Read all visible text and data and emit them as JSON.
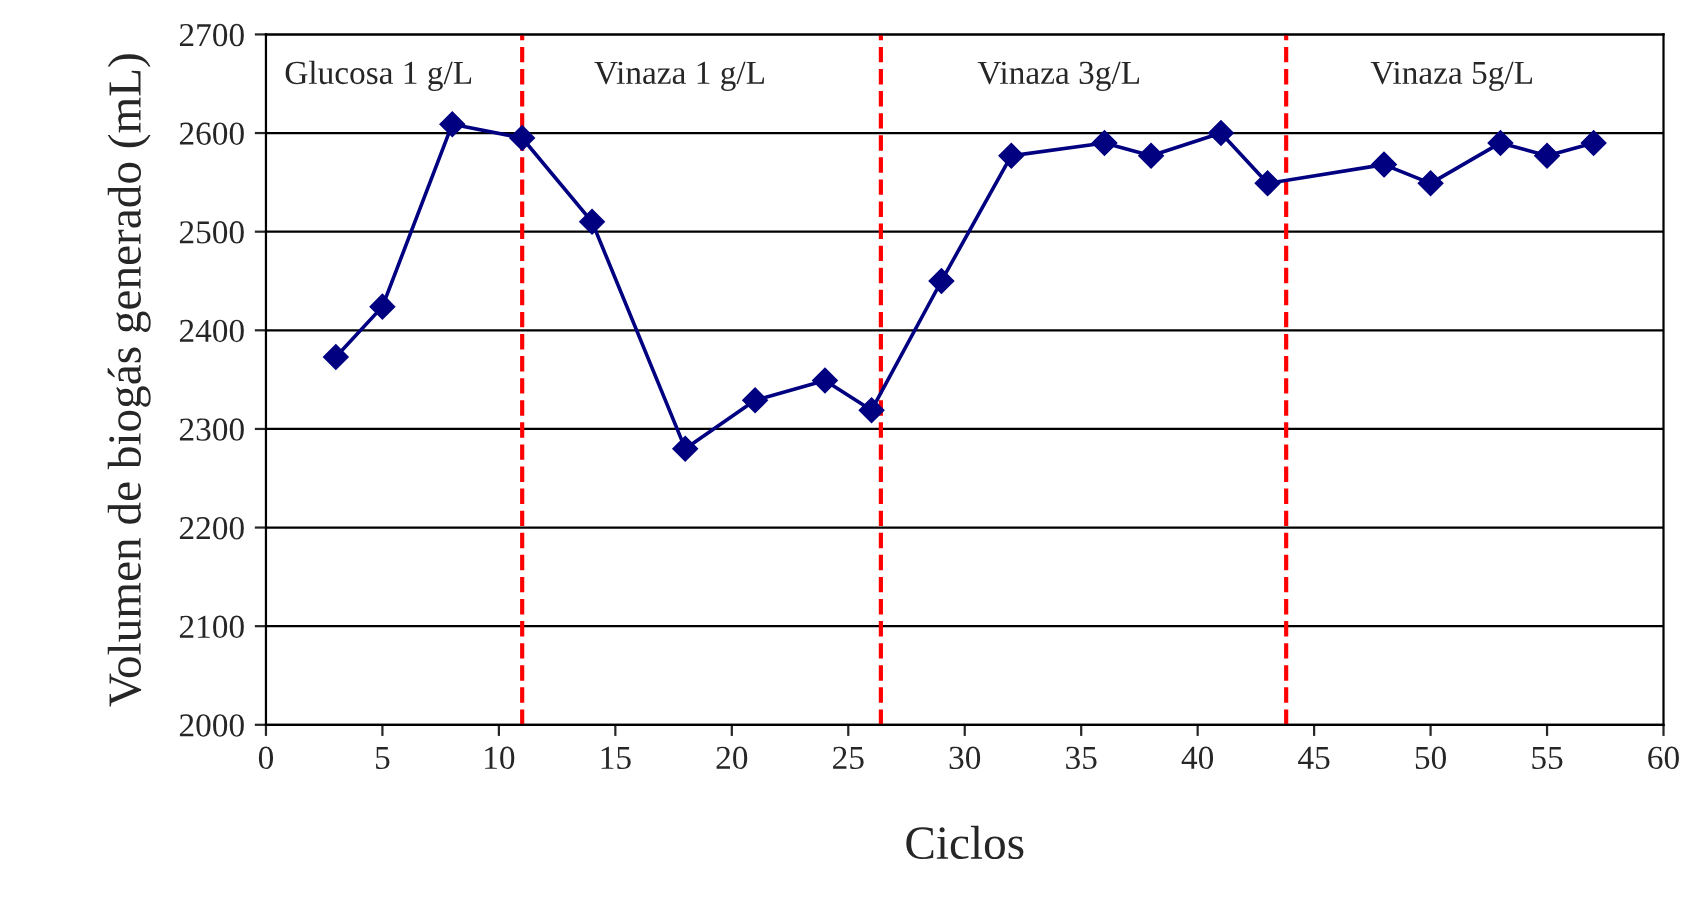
{
  "chart_data": {
    "type": "line",
    "xlabel": "Ciclos",
    "ylabel": "Volumen de biogás generado (mL)",
    "series": [
      {
        "color": "#000080",
        "x": [
          3,
          5,
          8,
          11,
          14,
          18,
          21,
          24,
          26,
          29,
          32,
          36,
          38,
          41,
          43,
          48,
          50,
          53,
          55,
          57
        ],
        "values": [
          2373,
          2424,
          2609,
          2595,
          2510,
          2280,
          2329,
          2349,
          2319,
          2450,
          2577,
          2590,
          2577,
          2600,
          2549,
          2568,
          2549,
          2590,
          2577,
          2590
        ]
      }
    ],
    "marker": "diamond",
    "line_style": "solid",
    "xlim": [
      0,
      60
    ],
    "xticks": [
      0,
      5,
      10,
      15,
      20,
      25,
      30,
      35,
      40,
      45,
      50,
      55,
      60
    ],
    "ylim": [
      2000,
      2700
    ],
    "yticks": [
      2000,
      2100,
      2200,
      2300,
      2400,
      2500,
      2600,
      2700
    ],
    "grid": "y",
    "ref_lines": [
      {
        "axis": "x",
        "value": 11,
        "color": "#ff0000",
        "line_style": "dashed"
      },
      {
        "axis": "x",
        "value": 26.4,
        "color": "#ff0000",
        "line_style": "dashed"
      },
      {
        "axis": "x",
        "value": 43.8,
        "color": "#ff0000",
        "line_style": "dashed"
      }
    ],
    "annotations": [
      "Glucosa 1 g/L",
      "Vinaza 1 g/L",
      "Vinaza 3g/L",
      "Vinaza 5g/L"
    ]
  }
}
